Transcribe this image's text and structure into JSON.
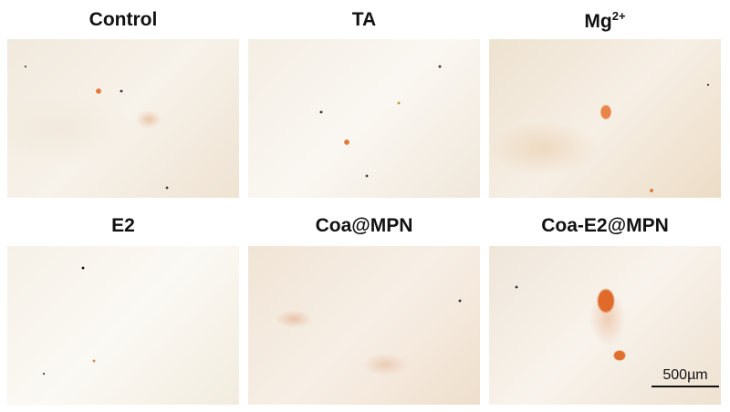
{
  "panels": [
    {
      "title": "Control"
    },
    {
      "title": "TA"
    },
    {
      "title": "Mg",
      "title_sup": "2+"
    },
    {
      "title": "E2"
    },
    {
      "title": "Coa@MPN"
    },
    {
      "title": "Coa-E2@MPN"
    }
  ],
  "scale_bar": {
    "label": "500µm"
  }
}
